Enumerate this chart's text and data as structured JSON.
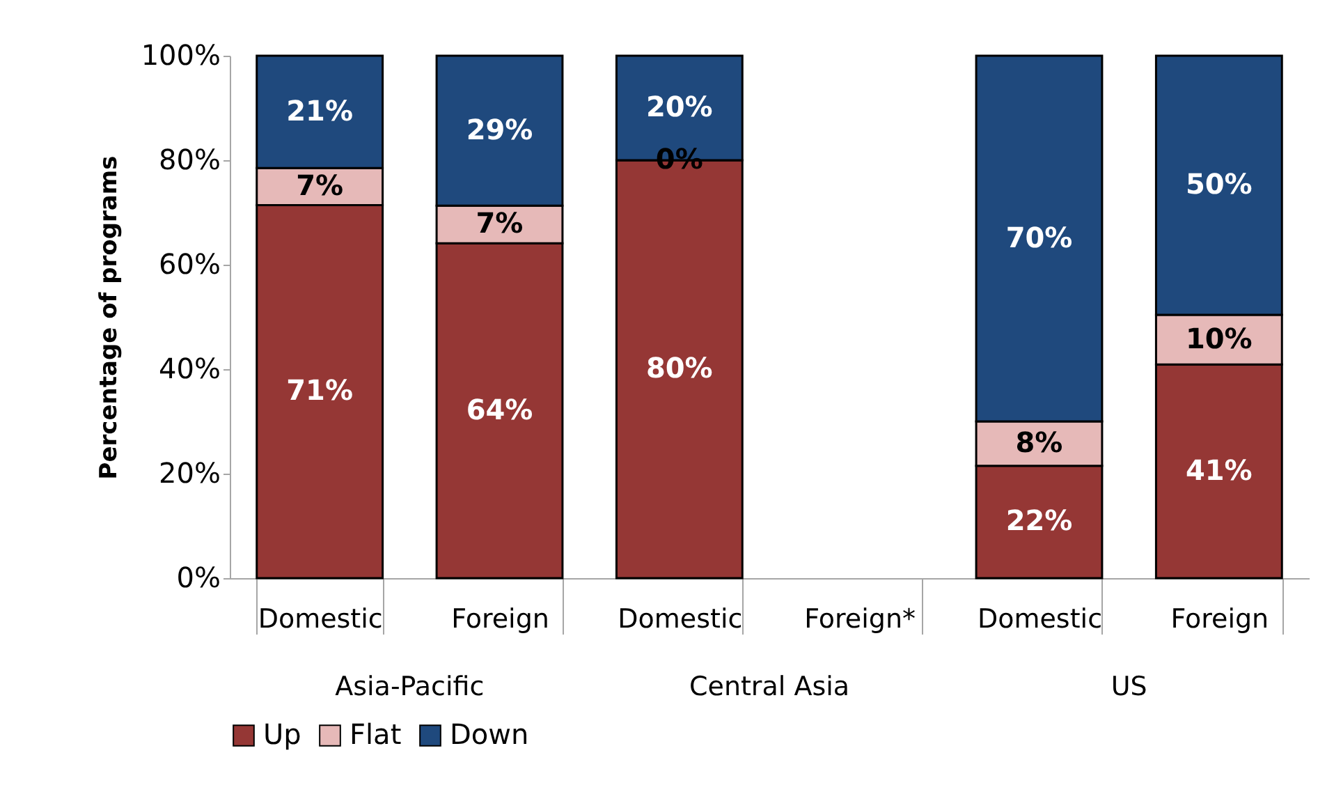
{
  "chart_data": {
    "type": "bar",
    "stacked": true,
    "ylabel": "Percentage of programs",
    "categories": [
      "Domestic",
      "Foreign",
      "Domestic",
      "Foreign*",
      "Domestic",
      "Foreign"
    ],
    "series": [
      {
        "name": "Up",
        "color": "#953735",
        "values": [
          71.4,
          64.1,
          80,
          null,
          21.5,
          40.9
        ],
        "value_labels": [
          "71%",
          "64%",
          "80%",
          null,
          "22%",
          "41%"
        ]
      },
      {
        "name": "Flat",
        "color": "#e6b9b8",
        "values": [
          7.1,
          7.2,
          0,
          null,
          8.5,
          9.5
        ],
        "value_labels": [
          "7%",
          "7%",
          "0%",
          null,
          "8%",
          "10%"
        ]
      },
      {
        "name": "Down",
        "color": "#1f497d",
        "values": [
          21.5,
          28.7,
          20,
          null,
          70,
          49.6
        ],
        "value_labels": [
          "21%",
          "29%",
          "20%",
          null,
          "70%",
          "50%"
        ]
      }
    ],
    "annotations": [
      "Asia-Pacific",
      "Central Asia",
      "US"
    ],
    "ylim": [
      0,
      100
    ],
    "yticks": [
      {
        "value": 0,
        "label": "0%"
      },
      {
        "value": 20,
        "label": "20%"
      },
      {
        "value": 40,
        "label": "40%"
      },
      {
        "value": 60,
        "label": "60%"
      },
      {
        "value": 80,
        "label": "80%"
      },
      {
        "value": 100,
        "label": "100%"
      }
    ],
    "grid": false,
    "legend": "bottom"
  }
}
